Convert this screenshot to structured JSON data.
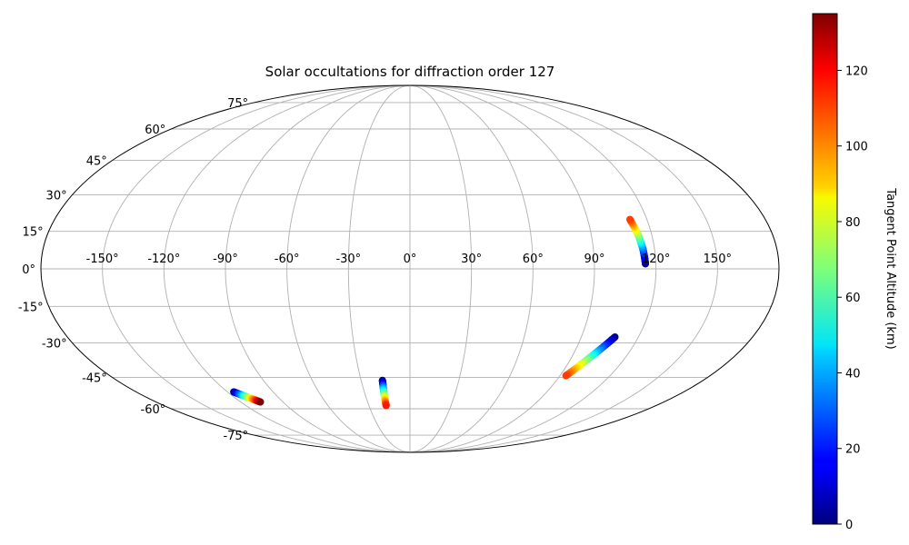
{
  "chart_data": {
    "type": "scatter",
    "projection": "mollweide",
    "title": "Solar occultations for diffraction order 127",
    "grid": true,
    "lon_ticks": [
      -150,
      -120,
      -90,
      -60,
      -30,
      0,
      30,
      60,
      90,
      120,
      150
    ],
    "lat_ticks": [
      -75,
      -60,
      -45,
      -30,
      -15,
      0,
      15,
      30,
      45,
      60,
      75
    ],
    "lon_tick_labels": [
      "-150°",
      "-120°",
      "-90°",
      "-60°",
      "-30°",
      "0°",
      "30°",
      "60°",
      "90°",
      "120°",
      "150°"
    ],
    "lat_tick_labels": [
      "-75°",
      "-60°",
      "-45°",
      "-30°",
      "-15°",
      "0°",
      "15°",
      "30°",
      "45°",
      "60°",
      "75°"
    ],
    "colorbar": {
      "label": "Tangent Point Altitude (km)",
      "colormap": "jet",
      "range": [
        0,
        135
      ],
      "ticks": [
        0,
        20,
        40,
        60,
        80,
        100,
        120
      ],
      "tick_labels": [
        "0",
        "20",
        "40",
        "60",
        "80",
        "100",
        "120"
      ]
    },
    "tracks": [
      {
        "lon": [
          -115.9,
          -112.5,
          -109.2,
          -106.0
        ],
        "lat": [
          -51.7,
          -53.4,
          -55.0,
          -56.6
        ],
        "alt": [
          0,
          45,
          90,
          135
        ]
      },
      {
        "lon": [
          -16.9,
          -17.1,
          -17.3,
          -17.4
        ],
        "lat": [
          -46.3,
          -50.3,
          -54.4,
          -58.4
        ],
        "alt": [
          0,
          40,
          80,
          115
        ]
      },
      {
        "lon": [
          107.7,
          103.0,
          98.3,
          93.6
        ],
        "lat": [
          -27.5,
          -33.0,
          -38.5,
          -44.2
        ],
        "alt": [
          0,
          35,
          75,
          110
        ]
      },
      {
        "lon": [
          114.9,
          114.3,
          113.2,
          111.4
        ],
        "lat": [
          2.0,
          7.9,
          13.8,
          19.8
        ],
        "alt": [
          0,
          30,
          70,
          110
        ]
      }
    ]
  }
}
